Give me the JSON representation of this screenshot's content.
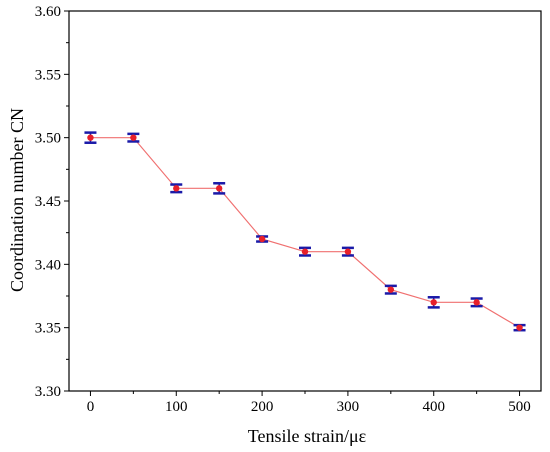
{
  "chart_data": {
    "type": "line",
    "xlabel": "Tensile strain/με",
    "ylabel": "Coordination number CN",
    "xlim": [
      -25,
      525
    ],
    "ylim": [
      3.3,
      3.6
    ],
    "x_ticks": [
      0,
      100,
      200,
      300,
      400,
      500
    ],
    "x_tick_labels": [
      "0",
      "100",
      "200",
      "300",
      "400",
      "500"
    ],
    "y_ticks": [
      3.3,
      3.35,
      3.4,
      3.45,
      3.5,
      3.55,
      3.6
    ],
    "y_tick_labels": [
      "3.30",
      "3.35",
      "3.40",
      "3.45",
      "3.50",
      "3.55",
      "3.60"
    ],
    "grid": false,
    "legend": "none",
    "series": [
      {
        "x": [
          0,
          50,
          100,
          150,
          200,
          250,
          300,
          350,
          400,
          450,
          500
        ],
        "y": [
          3.5,
          3.5,
          3.46,
          3.46,
          3.42,
          3.41,
          3.41,
          3.38,
          3.37,
          3.37,
          3.35
        ],
        "error": [
          0.004,
          0.003,
          0.003,
          0.004,
          0.002,
          0.003,
          0.003,
          0.003,
          0.004,
          0.003,
          0.002
        ]
      }
    ],
    "colors": {
      "line": "#f07070",
      "marker": "#e8202a",
      "error_bar": "#1a1aa8",
      "axis": "#000000"
    }
  }
}
